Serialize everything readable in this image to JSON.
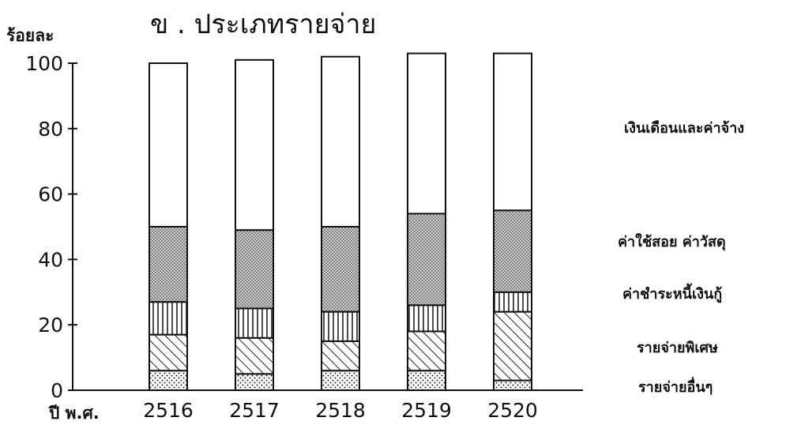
{
  "chart_data": {
    "type": "bar",
    "stacked": true,
    "title": "ข .   ประเภทรายจ่าย",
    "ylabel": "ร้อยละ",
    "xlabel": "ปี พ.ศ.",
    "ylim": [
      0,
      100
    ],
    "yticks": [
      0,
      20,
      40,
      60,
      80,
      100
    ],
    "categories": [
      "2516",
      "2517",
      "2518",
      "2519",
      "2520"
    ],
    "series": [
      {
        "name": "รายจ่ายอื่นๆ",
        "pattern": "dots",
        "values": [
          6,
          5,
          6,
          6,
          3
        ]
      },
      {
        "name": "รายจ่ายพิเศษ",
        "pattern": "diagonal",
        "values": [
          11,
          11,
          9,
          12,
          21
        ]
      },
      {
        "name": "ค่าชำระหนี้เงินกู้",
        "pattern": "vertical",
        "values": [
          10,
          9,
          9,
          8,
          6
        ]
      },
      {
        "name": "ค่าใช้สอย ค่าวัสดุ",
        "pattern": "dense-dots",
        "values": [
          23,
          24,
          26,
          28,
          25
        ]
      },
      {
        "name": "เงินเดือนและค่าจ้าง",
        "pattern": "blank",
        "values": [
          50,
          52,
          52,
          49,
          48
        ]
      }
    ]
  }
}
